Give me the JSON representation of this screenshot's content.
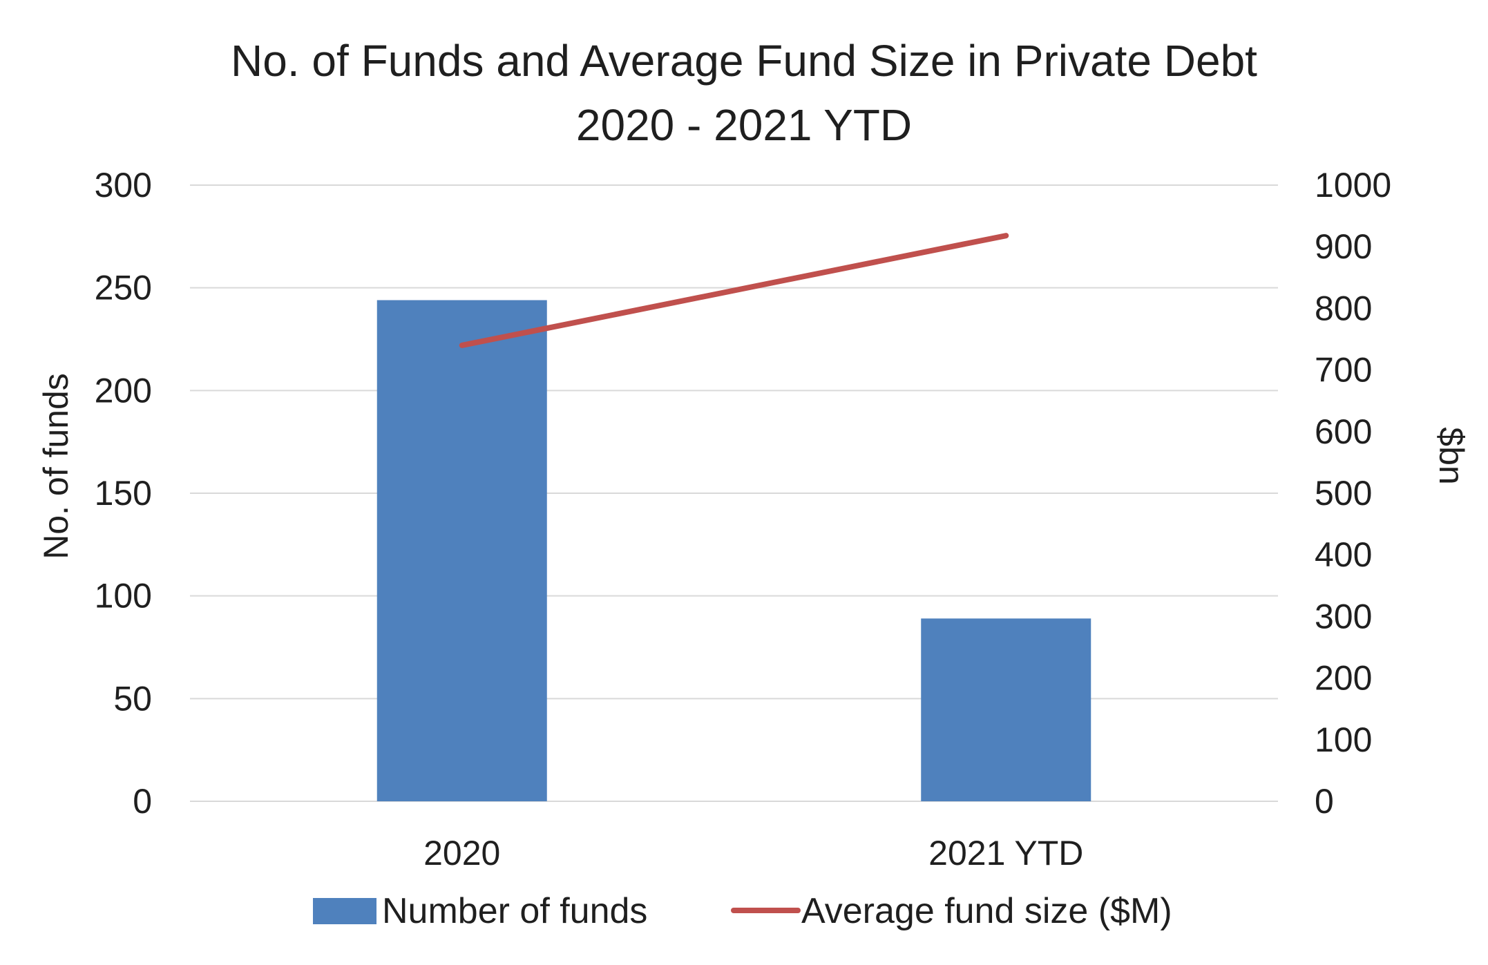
{
  "chart_data": {
    "type": "bar",
    "title": "No. of Funds and Average Fund Size in Private Debt",
    "subtitle": "2020 - 2021 YTD",
    "categories": [
      "2020",
      "2021 YTD"
    ],
    "ylabel": "No. of funds",
    "y2label": "$bn",
    "ylim": [
      0,
      300
    ],
    "yticks": [
      0,
      50,
      100,
      150,
      200,
      250,
      300
    ],
    "y2lim": [
      0,
      1000
    ],
    "y2ticks": [
      0,
      100,
      200,
      300,
      400,
      500,
      600,
      700,
      800,
      900,
      1000
    ],
    "grid": true,
    "legend_position": "bottom",
    "series": [
      {
        "name": "Number of funds",
        "type": "bar",
        "axis": "left",
        "color": "#4f81bd",
        "values": [
          244,
          89
        ]
      },
      {
        "name": "Average fund size ($M)",
        "type": "line",
        "axis": "right",
        "color": "#c0504d",
        "values": [
          740,
          918
        ]
      }
    ]
  }
}
